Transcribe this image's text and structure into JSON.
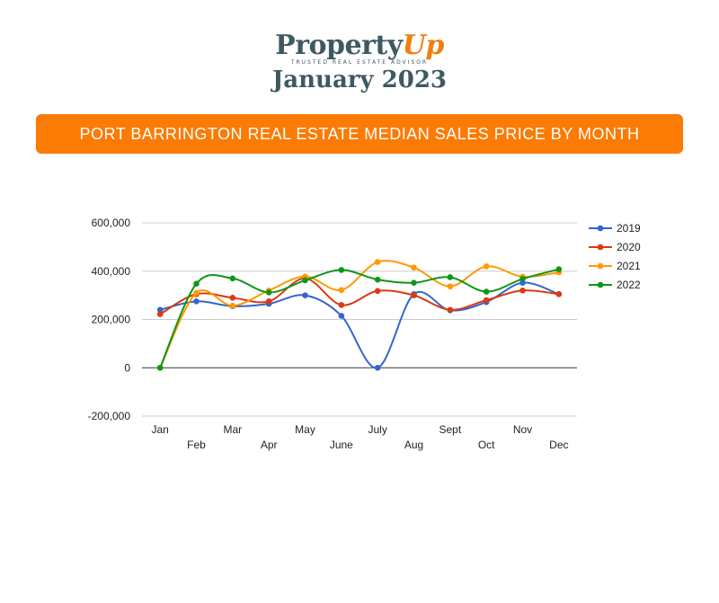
{
  "logo": {
    "brand_prefix": "Property",
    "brand_accent": "Up",
    "tagline": "TRUSTED REAL ESTATE ADVISOR",
    "date": "January 2023"
  },
  "banner": {
    "title": "PORT BARRINGTON REAL ESTATE MEDIAN SALES PRICE BY MONTH"
  },
  "colors": {
    "brand_text": "#3e5a60",
    "accent": "#f47d0e",
    "banner": "#fb7b05"
  },
  "chart_data": {
    "type": "line",
    "categories": [
      "Jan",
      "Feb",
      "Mar",
      "Apr",
      "May",
      "June",
      "July",
      "Aug",
      "Sept",
      "Oct",
      "Nov",
      "Dec"
    ],
    "ylim": [
      -200000,
      600000
    ],
    "yticks": [
      600000,
      400000,
      200000,
      0,
      -200000
    ],
    "ytick_labels": [
      "600,000",
      "400,000",
      "200,000",
      "0",
      "-200,000"
    ],
    "grid": true,
    "legend_position": "right",
    "series": [
      {
        "name": "2019",
        "color": "#3366cc",
        "values": [
          240000,
          275000,
          255000,
          265000,
          300000,
          215000,
          0,
          305000,
          238000,
          272000,
          352000,
          305000
        ]
      },
      {
        "name": "2020",
        "color": "#dc3912",
        "values": [
          222000,
          305000,
          290000,
          275000,
          370000,
          260000,
          318000,
          300000,
          240000,
          280000,
          320000,
          305000
        ]
      },
      {
        "name": "2021",
        "color": "#ff9900",
        "values": [
          0,
          310000,
          257000,
          320000,
          378000,
          322000,
          438000,
          415000,
          337000,
          420000,
          377000,
          395000
        ]
      },
      {
        "name": "2022",
        "color": "#109618",
        "values": [
          0,
          348000,
          370000,
          312000,
          362000,
          405000,
          365000,
          352000,
          375000,
          315000,
          368000,
          408000
        ]
      }
    ]
  }
}
